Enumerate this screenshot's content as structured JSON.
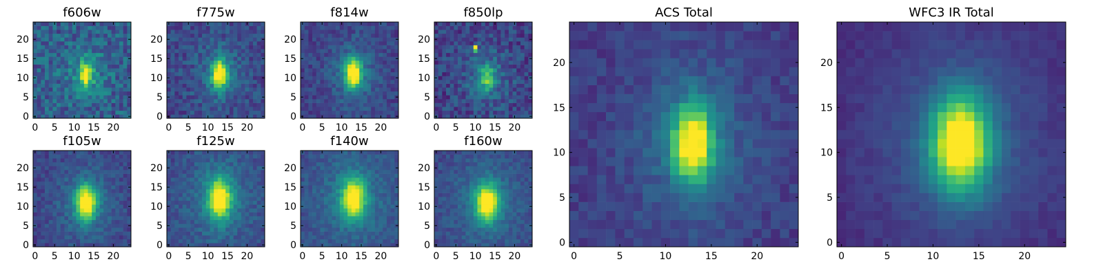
{
  "chart_data": [
    {
      "type": "heatmap",
      "title": "f606w",
      "xlim": [
        0,
        24
      ],
      "ylim": [
        0,
        24
      ],
      "xticks": [
        0,
        5,
        10,
        15,
        20
      ],
      "yticks": [
        0,
        5,
        10,
        15,
        20
      ],
      "colormap": "viridis",
      "grid": false,
      "peak": [
        13,
        11
      ],
      "sigma": [
        1.2,
        2.0
      ],
      "noise": 0.3,
      "base": 0.3,
      "amp": 0.65
    },
    {
      "type": "heatmap",
      "title": "f775w",
      "xlim": [
        0,
        24
      ],
      "ylim": [
        0,
        24
      ],
      "xticks": [
        0,
        5,
        10,
        15,
        20
      ],
      "yticks": [
        0,
        5,
        10,
        15,
        20
      ],
      "colormap": "viridis",
      "grid": false,
      "peak": [
        13,
        11
      ],
      "sigma": [
        1.3,
        2.4
      ],
      "noise": 0.22,
      "base": 0.22,
      "amp": 0.8
    },
    {
      "type": "heatmap",
      "title": "f814w",
      "xlim": [
        0,
        24
      ],
      "ylim": [
        0,
        24
      ],
      "xticks": [
        0,
        5,
        10,
        15,
        20
      ],
      "yticks": [
        0,
        5,
        10,
        15,
        20
      ],
      "colormap": "viridis",
      "grid": false,
      "peak": [
        13,
        11
      ],
      "sigma": [
        1.4,
        2.6
      ],
      "noise": 0.18,
      "base": 0.2,
      "amp": 0.85
    },
    {
      "type": "heatmap",
      "title": "f850lp",
      "xlim": [
        0,
        24
      ],
      "ylim": [
        0,
        24
      ],
      "xticks": [
        0,
        5,
        10,
        15,
        20
      ],
      "yticks": [
        0,
        5,
        10,
        15,
        20
      ],
      "colormap": "viridis",
      "grid": false,
      "peak": [
        13,
        10
      ],
      "sigma": [
        1.3,
        2.2
      ],
      "noise": 0.25,
      "base": 0.2,
      "amp": 0.45,
      "hot_pixel": [
        10,
        18
      ]
    },
    {
      "type": "heatmap",
      "title": "f105w",
      "xlim": [
        0,
        24
      ],
      "ylim": [
        0,
        24
      ],
      "xticks": [
        0,
        5,
        10,
        15,
        20
      ],
      "yticks": [
        0,
        5,
        10,
        15,
        20
      ],
      "colormap": "viridis",
      "grid": false,
      "peak": [
        13,
        11
      ],
      "sigma": [
        1.8,
        3.0
      ],
      "noise": 0.16,
      "base": 0.2,
      "amp": 0.85
    },
    {
      "type": "heatmap",
      "title": "f125w",
      "xlim": [
        0,
        24
      ],
      "ylim": [
        0,
        24
      ],
      "xticks": [
        0,
        5,
        10,
        15,
        20
      ],
      "yticks": [
        0,
        5,
        10,
        15,
        20
      ],
      "colormap": "viridis",
      "grid": false,
      "peak": [
        13,
        12
      ],
      "sigma": [
        2.0,
        3.6
      ],
      "noise": 0.16,
      "base": 0.22,
      "amp": 0.78
    },
    {
      "type": "heatmap",
      "title": "f140w",
      "xlim": [
        0,
        24
      ],
      "ylim": [
        0,
        24
      ],
      "xticks": [
        0,
        5,
        10,
        15,
        20
      ],
      "yticks": [
        0,
        5,
        10,
        15,
        20
      ],
      "colormap": "viridis",
      "grid": false,
      "peak": [
        13,
        12
      ],
      "sigma": [
        2.0,
        3.4
      ],
      "noise": 0.14,
      "base": 0.24,
      "amp": 0.78
    },
    {
      "type": "heatmap",
      "title": "f160w",
      "xlim": [
        0,
        24
      ],
      "ylim": [
        0,
        24
      ],
      "xticks": [
        0,
        5,
        10,
        15,
        20
      ],
      "yticks": [
        0,
        5,
        10,
        15,
        20
      ],
      "colormap": "viridis",
      "grid": false,
      "peak": [
        13,
        11
      ],
      "sigma": [
        2.0,
        3.2
      ],
      "noise": 0.14,
      "base": 0.22,
      "amp": 0.8
    },
    {
      "type": "heatmap",
      "title": "ACS Total",
      "xlim": [
        0,
        24
      ],
      "ylim": [
        0,
        24
      ],
      "xticks": [
        0,
        5,
        10,
        15,
        20
      ],
      "yticks": [
        0,
        5,
        10,
        15,
        20
      ],
      "colormap": "viridis",
      "grid": false,
      "peak": [
        13,
        11
      ],
      "sigma": [
        1.5,
        2.8
      ],
      "noise": 0.13,
      "base": 0.18,
      "amp": 0.85
    },
    {
      "type": "heatmap",
      "title": "WFC3 IR Total",
      "xlim": [
        0,
        24
      ],
      "ylim": [
        0,
        24
      ],
      "xticks": [
        0,
        5,
        10,
        15,
        20
      ],
      "yticks": [
        0,
        5,
        10,
        15,
        20
      ],
      "colormap": "viridis",
      "grid": false,
      "peak": [
        13,
        11
      ],
      "sigma": [
        2.2,
        3.6
      ],
      "noise": 0.07,
      "base": 0.12,
      "amp": 0.9
    }
  ]
}
